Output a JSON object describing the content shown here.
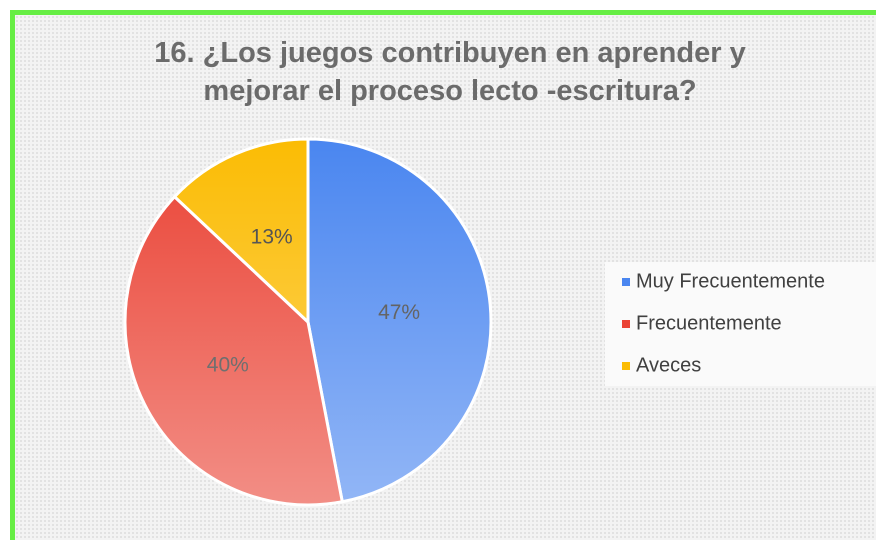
{
  "chart_data": {
    "type": "pie",
    "title": "16. ¿Los juegos contribuyen en aprender y mejorar el proceso lecto -escritura?",
    "categories": [
      "Muy Frecuentemente",
      "Frecuentemente",
      "Aveces"
    ],
    "values": [
      47,
      40,
      13
    ],
    "value_labels": [
      "47%",
      "40%",
      "13%"
    ],
    "colors": [
      "#4a86f0",
      "#ea4335",
      "#fbbc04"
    ],
    "legend": "right"
  }
}
